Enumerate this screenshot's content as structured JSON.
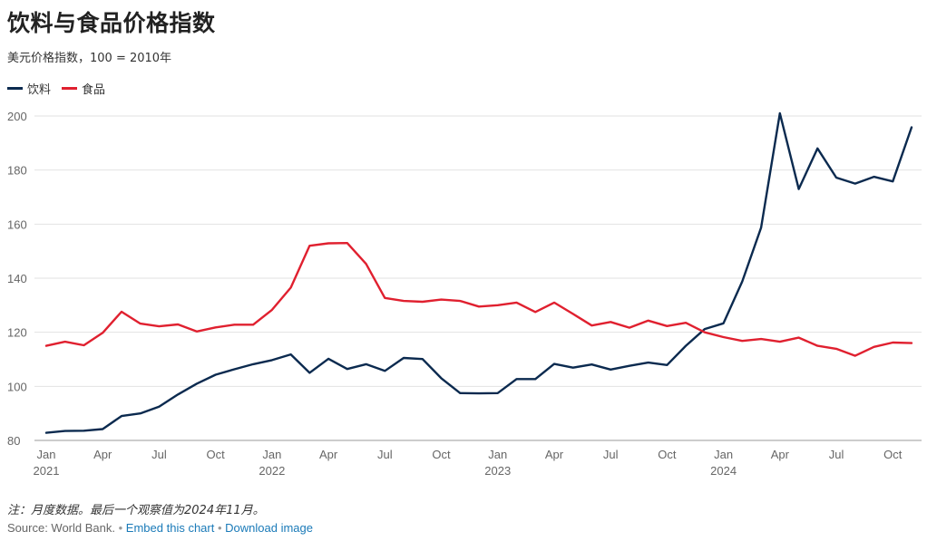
{
  "chart_data": {
    "type": "line",
    "title": "饮料与食品价格指数",
    "subtitle": "美元价格指数，100 = 2010年",
    "ylim": [
      80,
      200
    ],
    "yticks": [
      80,
      100,
      120,
      140,
      160,
      180,
      200
    ],
    "grid": true,
    "legend_position": "top-left",
    "x": [
      "2021-01",
      "2021-02",
      "2021-03",
      "2021-04",
      "2021-05",
      "2021-06",
      "2021-07",
      "2021-08",
      "2021-09",
      "2021-10",
      "2021-11",
      "2021-12",
      "2022-01",
      "2022-02",
      "2022-03",
      "2022-04",
      "2022-05",
      "2022-06",
      "2022-07",
      "2022-08",
      "2022-09",
      "2022-10",
      "2022-11",
      "2022-12",
      "2023-01",
      "2023-02",
      "2023-03",
      "2023-04",
      "2023-05",
      "2023-06",
      "2023-07",
      "2023-08",
      "2023-09",
      "2023-10",
      "2023-11",
      "2023-12",
      "2024-01",
      "2024-02",
      "2024-03",
      "2024-04",
      "2024-05",
      "2024-06",
      "2024-07",
      "2024-08",
      "2024-09",
      "2024-10",
      "2024-11"
    ],
    "xtick_labels": [
      {
        "month": "Jan",
        "year": "2021",
        "index": 0
      },
      {
        "month": "Apr",
        "year": "",
        "index": 3
      },
      {
        "month": "Jul",
        "year": "",
        "index": 6
      },
      {
        "month": "Oct",
        "year": "",
        "index": 9
      },
      {
        "month": "Jan",
        "year": "2022",
        "index": 12
      },
      {
        "month": "Apr",
        "year": "",
        "index": 15
      },
      {
        "month": "Jul",
        "year": "",
        "index": 18
      },
      {
        "month": "Oct",
        "year": "",
        "index": 21
      },
      {
        "month": "Jan",
        "year": "2023",
        "index": 24
      },
      {
        "month": "Apr",
        "year": "",
        "index": 27
      },
      {
        "month": "Jul",
        "year": "",
        "index": 30
      },
      {
        "month": "Oct",
        "year": "",
        "index": 33
      },
      {
        "month": "Jan",
        "year": "2024",
        "index": 36
      },
      {
        "month": "Apr",
        "year": "",
        "index": 39
      },
      {
        "month": "Jul",
        "year": "",
        "index": 42
      },
      {
        "month": "Oct",
        "year": "",
        "index": 45
      }
    ],
    "series": [
      {
        "name": "饮料",
        "color": "#0b2a4f",
        "values": [
          82.8,
          83.5,
          83.6,
          84.2,
          89.0,
          90.0,
          92.5,
          97.0,
          101.0,
          104.3,
          106.3,
          108.2,
          109.7,
          111.8,
          105.0,
          110.2,
          106.4,
          108.2,
          105.7,
          110.5,
          110.1,
          103.0,
          97.5,
          97.4,
          97.5,
          102.7,
          102.7,
          108.3,
          106.9,
          108.1,
          106.2,
          107.6,
          108.8,
          107.9,
          115.0,
          121.2,
          123.3,
          138.8,
          158.7,
          201.0,
          173.0,
          188.0,
          177.2,
          175.0,
          177.5,
          175.8,
          195.8
        ]
      },
      {
        "name": "食品",
        "color": "#e0202f",
        "values": [
          115.0,
          116.5,
          115.2,
          119.8,
          127.6,
          123.2,
          122.2,
          122.9,
          120.3,
          121.8,
          122.8,
          122.8,
          128.3,
          136.5,
          152.0,
          152.9,
          153.0,
          145.3,
          132.7,
          131.6,
          131.3,
          132.1,
          131.6,
          129.5,
          130.0,
          131.0,
          127.5,
          131.0,
          126.8,
          122.5,
          123.8,
          121.7,
          124.3,
          122.3,
          123.5,
          120.0,
          118.2,
          116.8,
          117.5,
          116.5,
          118.0,
          115.0,
          113.9,
          111.3,
          114.6,
          116.2,
          116.0
        ]
      }
    ]
  },
  "footer": {
    "note": "注：月度数据。最后一个观察值为2024年11月。",
    "source_text": "Source: World Bank.",
    "separator": "•",
    "embed_link": "Embed this chart",
    "download_link": "Download image"
  }
}
